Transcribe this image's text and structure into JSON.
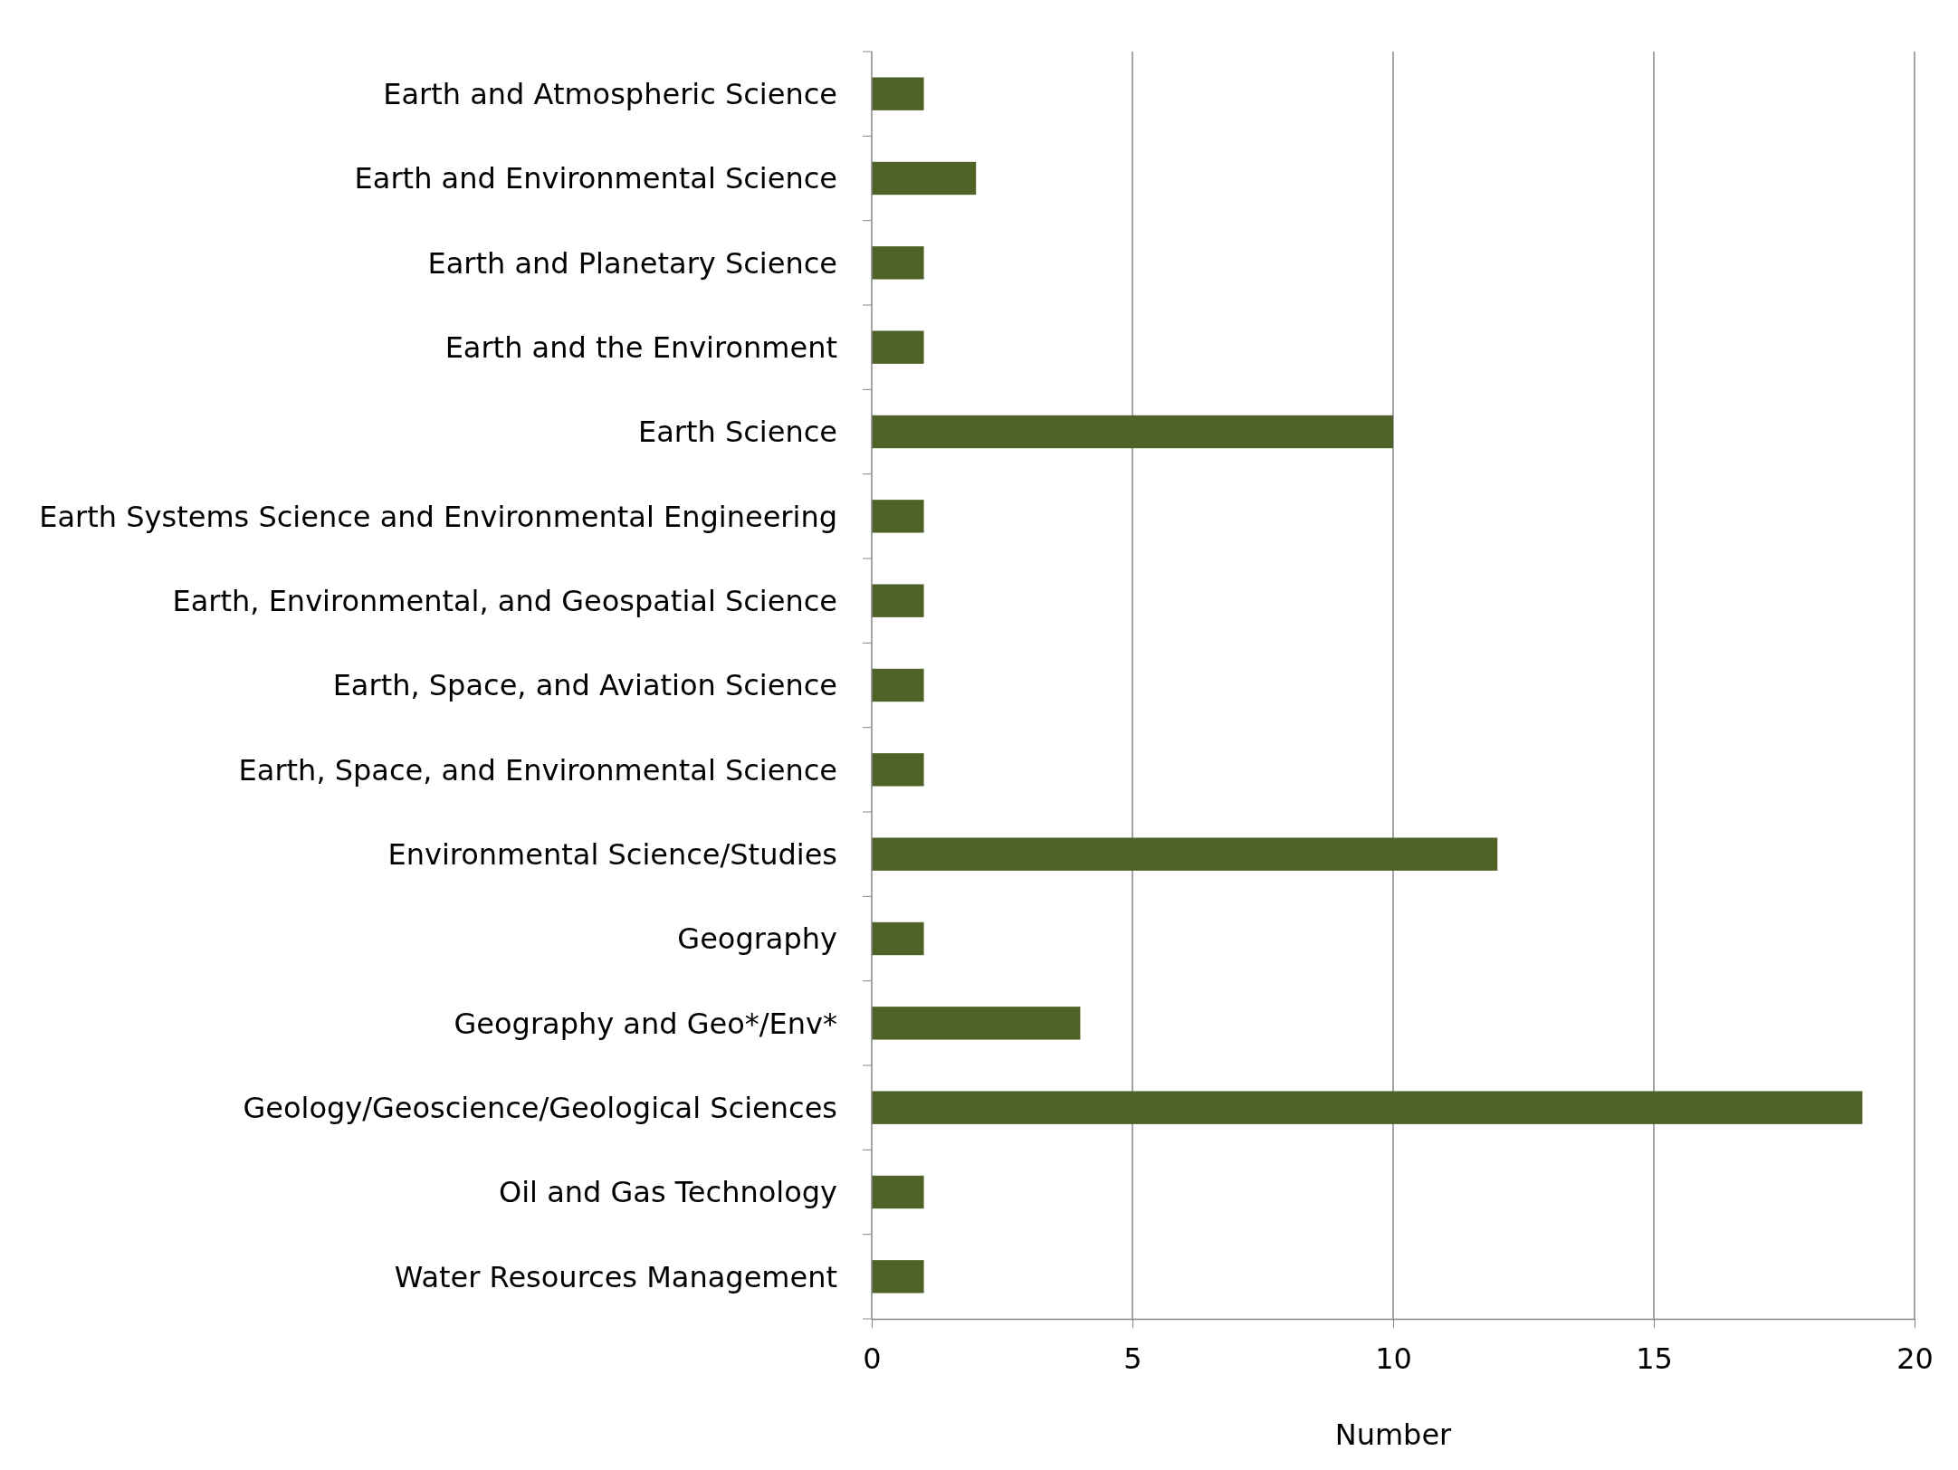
{
  "chart_data": {
    "type": "bar",
    "orientation": "horizontal",
    "xlabel": "Number",
    "categories": [
      "Earth and Atmospheric Science",
      "Earth and Environmental Science",
      "Earth and Planetary Science",
      "Earth and the Environment",
      "Earth Science",
      "Earth Systems Science and Environmental Engineering",
      "Earth, Environmental, and Geospatial Science",
      "Earth, Space, and Aviation Science",
      "Earth, Space, and Environmental Science",
      "Environmental Science/Studies",
      "Geography",
      "Geography and Geo*/Env*",
      "Geology/Geoscience/Geological Sciences",
      "Oil and Gas Technology",
      "Water Resources Management"
    ],
    "values": [
      1,
      2,
      1,
      1,
      10,
      1,
      1,
      1,
      1,
      12,
      1,
      4,
      19,
      1,
      1
    ],
    "color": "#4f6228",
    "xlim": [
      0,
      20
    ],
    "xticks": [
      0,
      5,
      10,
      15,
      20
    ],
    "grid": "x"
  }
}
